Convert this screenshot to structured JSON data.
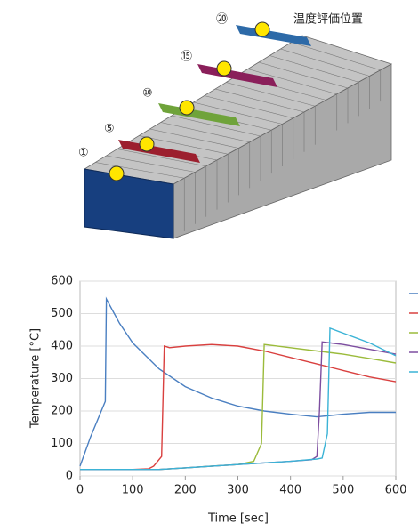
{
  "illustration": {
    "caption": "温度評価位置",
    "labels": [
      "⑳",
      "⑮",
      "⑩",
      "⑤",
      "①"
    ]
  },
  "chart_data": {
    "type": "line",
    "xlabel": "Time [sec]",
    "ylabel": "Temperature [°C]",
    "xlim": [
      0,
      600
    ],
    "xticks": [
      0,
      100,
      200,
      300,
      400,
      500,
      600
    ],
    "ylim": [
      0,
      600
    ],
    "yticks": [
      0,
      100,
      200,
      300,
      400,
      500,
      600
    ],
    "grid": true,
    "series": [
      {
        "color": "#4a7fc1",
        "x": [
          0,
          20,
          48,
          50,
          75,
          100,
          150,
          200,
          250,
          300,
          350,
          400,
          450,
          500,
          550,
          600
        ],
        "values": [
          30,
          120,
          230,
          545,
          470,
          410,
          330,
          275,
          240,
          215,
          200,
          190,
          182,
          190,
          196,
          196
        ]
      },
      {
        "color": "#d9403f",
        "x": [
          0,
          100,
          130,
          140,
          155,
          160,
          170,
          200,
          250,
          300,
          350,
          400,
          450,
          500,
          550,
          600
        ],
        "values": [
          20,
          20,
          22,
          30,
          60,
          400,
          395,
          400,
          405,
          400,
          385,
          365,
          345,
          325,
          305,
          290
        ]
      },
      {
        "color": "#9bbb3b",
        "x": [
          0,
          150,
          200,
          250,
          300,
          330,
          345,
          350,
          400,
          450,
          500,
          550,
          600
        ],
        "values": [
          20,
          20,
          25,
          30,
          35,
          45,
          100,
          405,
          395,
          385,
          375,
          362,
          348
        ]
      },
      {
        "color": "#7d4ea0",
        "x": [
          0,
          150,
          200,
          300,
          400,
          440,
          450,
          455,
          460,
          500,
          550,
          600
        ],
        "values": [
          20,
          20,
          25,
          35,
          45,
          50,
          60,
          200,
          413,
          405,
          390,
          375
        ]
      },
      {
        "color": "#3bb3d6",
        "x": [
          0,
          150,
          200,
          300,
          400,
          450,
          460,
          470,
          475,
          500,
          550,
          600
        ],
        "values": [
          20,
          20,
          25,
          35,
          45,
          52,
          55,
          130,
          455,
          440,
          410,
          370
        ]
      }
    ]
  }
}
